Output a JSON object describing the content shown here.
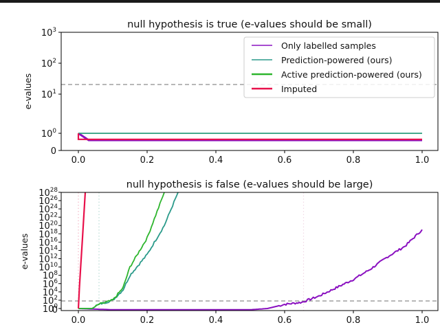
{
  "chart_data": [
    {
      "type": "line",
      "title": "null hypothesis is true (e-values should be small)",
      "xlabel": "",
      "ylabel": "e-values",
      "xlim": [
        0.0,
        1.0
      ],
      "yscale": "symlog",
      "ylim": [
        0,
        1000
      ],
      "x_ticks": [
        "0.0",
        "0.2",
        "0.4",
        "0.6",
        "0.8",
        "1.0"
      ],
      "y_ticks": [
        "0",
        "10^0",
        "10^1",
        "10^2",
        "10^3"
      ],
      "threshold_line": {
        "value": 20,
        "style": "dashed",
        "color": "#8c8c8c"
      },
      "legend": {
        "position": "upper right",
        "entries": [
          {
            "label": "Only labelled samples",
            "color": "#8a10c0"
          },
          {
            "label": "Prediction-powered (ours)",
            "color": "#2a9a8a"
          },
          {
            "label": "Active prediction-powered (ours)",
            "color": "#2db52d"
          },
          {
            "label": "Imputed",
            "color": "#e8104a"
          }
        ]
      },
      "series": [
        {
          "name": "Only labelled samples",
          "x": [
            0.0,
            0.03,
            1.0
          ],
          "values": [
            1.0,
            0.6,
            0.6
          ]
        },
        {
          "name": "Prediction-powered (ours)",
          "x": [
            0.0,
            1.0
          ],
          "values": [
            1.0,
            1.0
          ]
        },
        {
          "name": "Active prediction-powered (ours)",
          "x": [
            0.0,
            1.0
          ],
          "values": [
            1.0,
            1.0
          ]
        },
        {
          "name": "Imputed",
          "x": [
            0.0,
            0.0,
            1.0
          ],
          "values": [
            1.0,
            0.65,
            0.65
          ]
        }
      ]
    },
    {
      "type": "line",
      "title": "null hypothesis is false (e-values should be large)",
      "xlabel": "",
      "ylabel": "e-values",
      "xlim": [
        0.0,
        1.0
      ],
      "yscale": "symlog",
      "ylim": [
        0,
        1e+28
      ],
      "x_ticks": [
        "0.0",
        "0.2",
        "0.4",
        "0.6",
        "0.8",
        "1.0"
      ],
      "y_ticks": [
        "10^0",
        "10^2",
        "10^4",
        "10^6",
        "10^8",
        "10^10",
        "10^12",
        "10^14",
        "10^16",
        "10^18",
        "10^20",
        "10^22",
        "10^24",
        "10^26",
        "10^28"
      ],
      "threshold_line": {
        "value": 20,
        "style": "dashed",
        "color": "#8c8c8c"
      },
      "vertical_markers": [
        {
          "x": 0.0,
          "color": "#f4b8c8",
          "style": "dotted"
        },
        {
          "x": 0.06,
          "color": "#b8dcd4",
          "style": "dotted"
        },
        {
          "x": 0.655,
          "color": "#f0d8e4",
          "style": "dotted"
        }
      ],
      "series": [
        {
          "name": "Only labelled samples",
          "x": [
            0.0,
            0.1,
            0.5,
            0.55,
            0.6,
            0.65,
            0.7,
            0.75,
            0.8,
            0.85,
            0.9,
            0.95,
            1.0
          ],
          "log10_values": [
            0,
            -0.5,
            -0.5,
            0,
            1,
            1.5,
            3,
            5,
            7,
            9.5,
            12.5,
            15,
            19
          ]
        },
        {
          "name": "Prediction-powered (ours)",
          "x": [
            0.0,
            0.04,
            0.06,
            0.1,
            0.13,
            0.15,
            0.2,
            0.25,
            0.29
          ],
          "log10_values": [
            0,
            0,
            1,
            2,
            4.5,
            8,
            13,
            20,
            28
          ]
        },
        {
          "name": "Active prediction-powered (ours)",
          "x": [
            0.0,
            0.04,
            0.06,
            0.1,
            0.13,
            0.15,
            0.2,
            0.25
          ],
          "log10_values": [
            0,
            0,
            1,
            2,
            5,
            10,
            17,
            28
          ]
        },
        {
          "name": "Imputed",
          "x": [
            0.0,
            0.003,
            0.02
          ],
          "log10_values": [
            0,
            5,
            28
          ]
        }
      ]
    }
  ]
}
